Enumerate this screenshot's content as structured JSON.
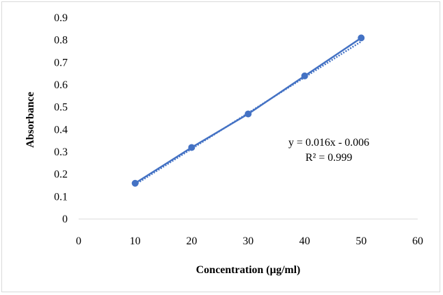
{
  "chart_data": {
    "type": "scatter",
    "xlabel": "Concentration (µg/ml)",
    "ylabel": "Absorbance",
    "xlim": [
      0,
      60
    ],
    "ylim": [
      0,
      0.9
    ],
    "x_ticks": [
      "0",
      "10",
      "20",
      "30",
      "40",
      "50",
      "60"
    ],
    "y_ticks": [
      "0",
      "0.1",
      "0.2",
      "0.3",
      "0.4",
      "0.5",
      "0.6",
      "0.7",
      "0.8",
      "0.9"
    ],
    "series": [
      {
        "x": [
          10,
          20,
          30,
          40,
          50
        ],
        "y": [
          0.16,
          0.32,
          0.47,
          0.64,
          0.81
        ],
        "color": "#4472C4",
        "line": "solid",
        "markers": true
      }
    ],
    "trendline": {
      "style": "dotted",
      "color": "#4472C4",
      "slope": 0.016,
      "intercept": -0.006,
      "x_range": [
        10,
        50
      ]
    },
    "annotations": {
      "equation": "y = 0.016x - 0.006",
      "r_squared": "R² = 0.999"
    },
    "grid": false,
    "legend": "none"
  }
}
